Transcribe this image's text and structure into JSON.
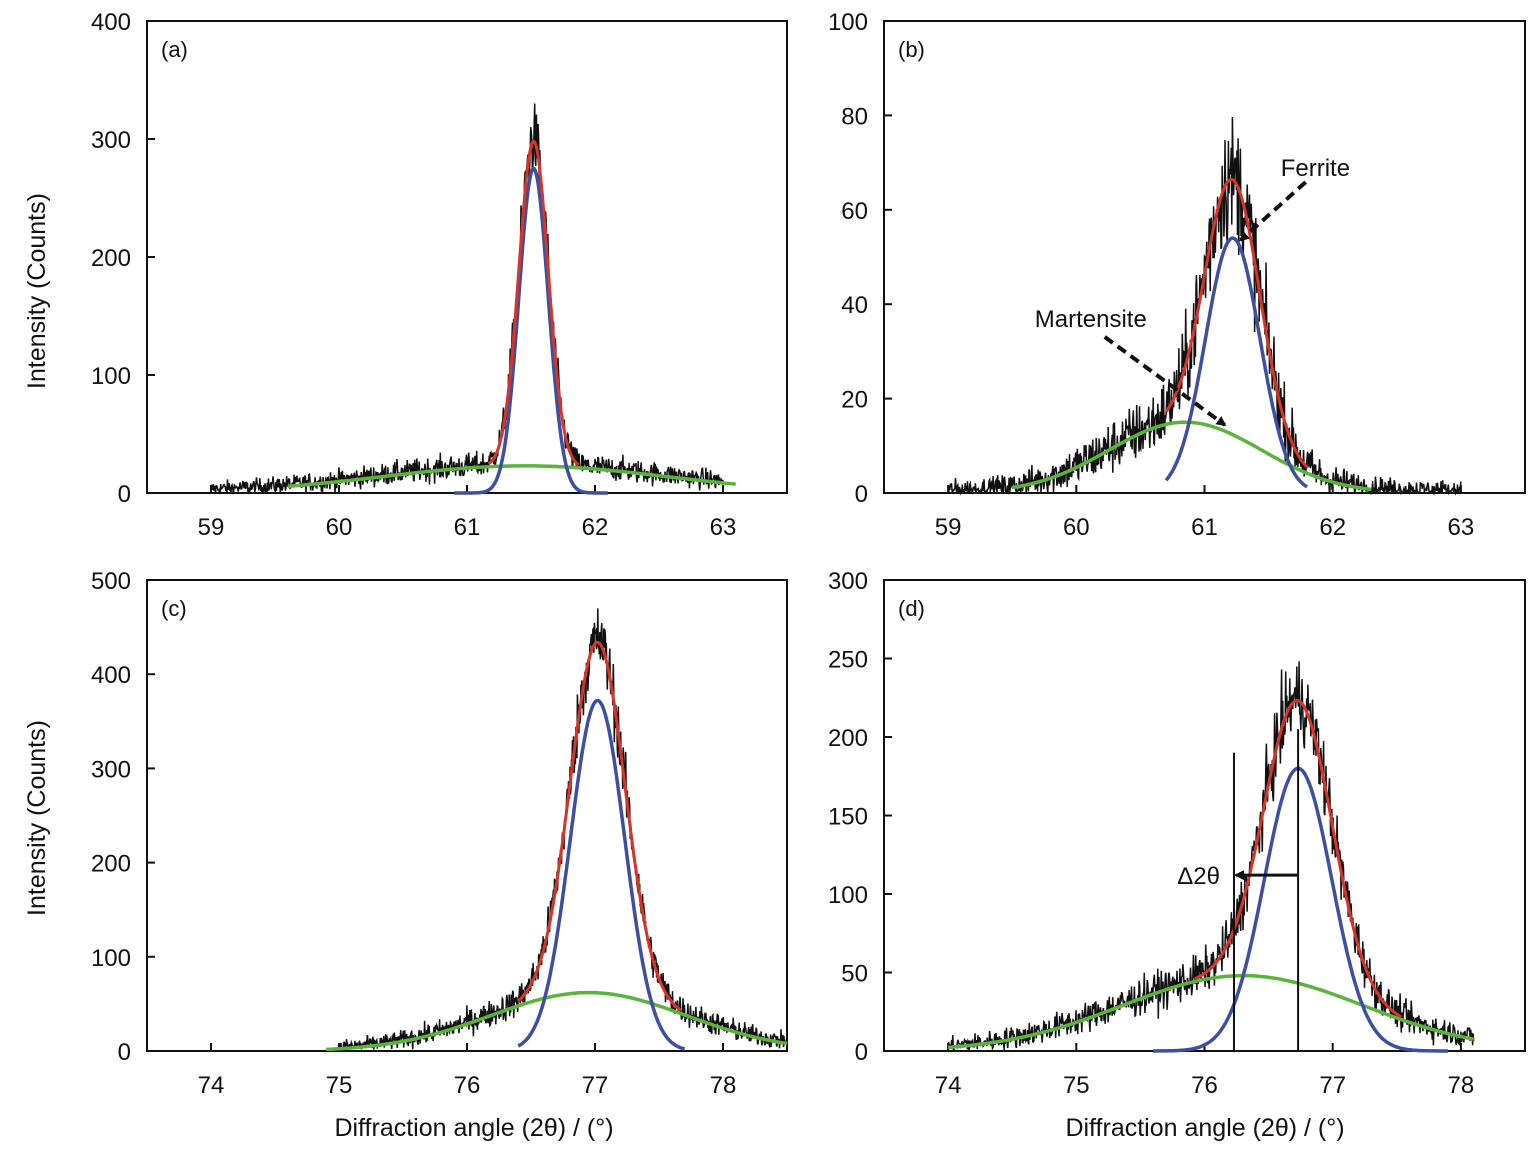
{
  "figure": {
    "ylabel": "Intensity (Counts)",
    "xlabel": "Diffraction angle (2θ) / (°)"
  },
  "colors": {
    "measured": "#111111",
    "total_fit": "#d8352a",
    "ferrite_fit": "#3d4f9f",
    "martensite_fit": "#5bb33c"
  },
  "chart_data": [
    {
      "panel": "(a)",
      "type": "line",
      "xlim": [
        58.5,
        63.5
      ],
      "ylim": [
        0,
        400
      ],
      "xticks": [
        59,
        60,
        61,
        62,
        63
      ],
      "yticks": [
        0,
        100,
        200,
        300,
        400
      ],
      "xlabel": "",
      "ylabel": "Intensity (Counts)",
      "x_range_measured": [
        59.0,
        63.0
      ],
      "peaks": {
        "ferrite": {
          "center": 61.52,
          "height": 275,
          "fwhm": 0.27,
          "range": [
            60.9,
            62.1
          ]
        },
        "martensite": {
          "center": 61.45,
          "height": 23,
          "fwhm": 2.6,
          "range": [
            59.6,
            63.1
          ]
        }
      },
      "annotations": []
    },
    {
      "panel": "(b)",
      "type": "line",
      "xlim": [
        58.5,
        63.5
      ],
      "ylim": [
        0,
        100
      ],
      "xticks": [
        59,
        60,
        61,
        62,
        63
      ],
      "yticks": [
        0,
        20,
        40,
        60,
        80,
        100
      ],
      "xlabel": "",
      "ylabel": "",
      "x_range_measured": [
        59.0,
        63.0
      ],
      "peaks": {
        "ferrite": {
          "center": 61.22,
          "height": 54,
          "fwhm": 0.5,
          "range": [
            60.7,
            61.8
          ]
        },
        "martensite": {
          "center": 60.85,
          "height": 15,
          "fwhm": 1.4,
          "range": [
            59.5,
            62.3
          ]
        }
      },
      "annotations": [
        {
          "text": "Ferrite",
          "points_to": [
            61.22,
            54
          ]
        },
        {
          "text": "Martensite",
          "points_to": [
            61.08,
            14
          ]
        }
      ]
    },
    {
      "panel": "(c)",
      "type": "line",
      "xlim": [
        73.5,
        78.5
      ],
      "ylim": [
        0,
        500
      ],
      "xticks": [
        74,
        75,
        76,
        77,
        78
      ],
      "yticks": [
        0,
        100,
        200,
        300,
        400,
        500
      ],
      "xlabel": "Diffraction angle (2θ) / (°)",
      "ylabel": "Intensity (Counts)",
      "x_range_measured": [
        75.0,
        78.5
      ],
      "peaks": {
        "ferrite": {
          "center": 77.02,
          "height": 372,
          "fwhm": 0.5,
          "range": [
            76.4,
            77.7
          ]
        },
        "martensite": {
          "center": 76.95,
          "height": 62,
          "fwhm": 1.8,
          "range": [
            74.9,
            78.5
          ]
        }
      },
      "annotations": []
    },
    {
      "panel": "(d)",
      "type": "line",
      "xlim": [
        73.5,
        78.5
      ],
      "ylim": [
        0,
        300
      ],
      "xticks": [
        74,
        75,
        76,
        77,
        78
      ],
      "yticks": [
        0,
        50,
        100,
        150,
        200,
        250,
        300
      ],
      "xlabel": "Diffraction angle (2θ) / (°)",
      "ylabel": "",
      "x_range_measured": [
        74.0,
        78.1
      ],
      "peaks": {
        "ferrite": {
          "center": 76.73,
          "height": 180,
          "fwhm": 0.62,
          "range": [
            75.6,
            77.9
          ]
        },
        "martensite": {
          "center": 76.3,
          "height": 48,
          "fwhm": 2.2,
          "range": [
            74.0,
            78.1
          ]
        }
      },
      "annotations": [
        {
          "text": "Δ2θ",
          "vlines": [
            76.23,
            76.73
          ],
          "arrow_from": 76.73,
          "arrow_to": 76.23,
          "arrow_y": 112
        }
      ]
    }
  ]
}
